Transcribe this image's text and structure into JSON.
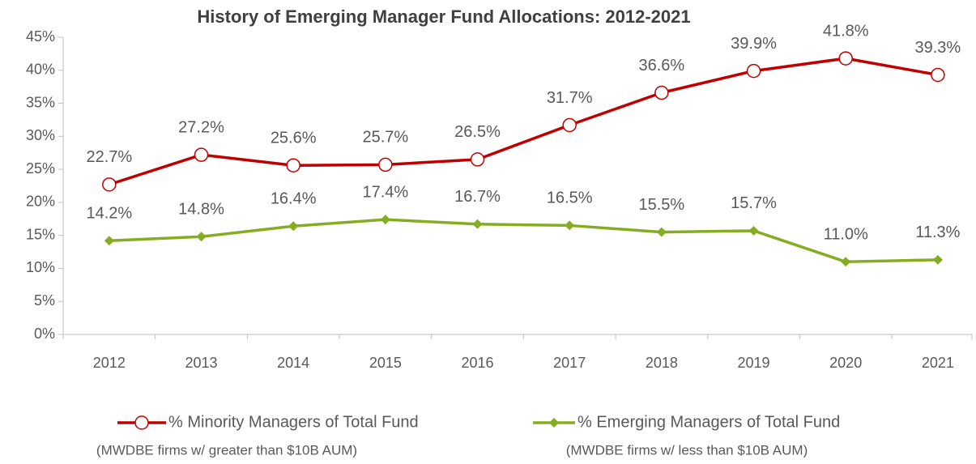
{
  "chart_data": {
    "type": "line",
    "title": "History of Emerging Manager Fund Allocations: 2012-2021",
    "categories": [
      "2012",
      "2013",
      "2014",
      "2015",
      "2016",
      "2017",
      "2018",
      "2019",
      "2020",
      "2021"
    ],
    "series": [
      {
        "name": "% Minority Managers of Total Fund",
        "legend_note": "(MWDBE firms w/ greater than $10B AUM)",
        "color": "#c00000",
        "marker": "circle",
        "values": [
          22.7,
          27.2,
          25.6,
          25.7,
          26.5,
          31.7,
          36.6,
          39.9,
          41.8,
          39.3
        ],
        "value_labels": [
          "22.7%",
          "27.2%",
          "25.6%",
          "25.7%",
          "26.5%",
          "31.7%",
          "36.6%",
          "39.9%",
          "41.8%",
          "39.3%"
        ]
      },
      {
        "name": "% Emerging Managers of Total Fund",
        "legend_note": "(MWDBE firms w/ less than $10B AUM)",
        "color": "#86ad22",
        "marker": "diamond",
        "values": [
          14.2,
          14.8,
          16.4,
          17.4,
          16.7,
          16.5,
          15.5,
          15.7,
          11.0,
          11.3
        ],
        "value_labels": [
          "14.2%",
          "14.8%",
          "16.4%",
          "17.4%",
          "16.7%",
          "16.5%",
          "15.5%",
          "15.7%",
          "11.0%",
          "11.3%"
        ]
      }
    ],
    "ylim": [
      0,
      45
    ],
    "yticks": [
      {
        "value": 0,
        "label": "0%"
      },
      {
        "value": 5,
        "label": "5%"
      },
      {
        "value": 10,
        "label": "10%"
      },
      {
        "value": 15,
        "label": "15%"
      },
      {
        "value": 20,
        "label": "20%"
      },
      {
        "value": 25,
        "label": "25%"
      },
      {
        "value": 30,
        "label": "30%"
      },
      {
        "value": 35,
        "label": "35%"
      },
      {
        "value": 40,
        "label": "40%"
      },
      {
        "value": 45,
        "label": "45%"
      }
    ],
    "grid": false,
    "legend": "bottom"
  }
}
